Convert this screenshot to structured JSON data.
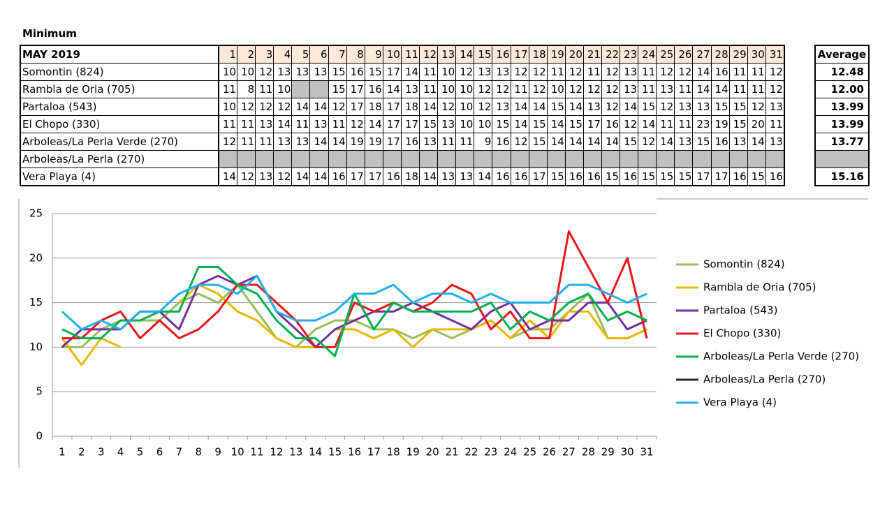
{
  "title": "Minimum",
  "table": {
    "header": "MAY 2019",
    "days": [
      1,
      2,
      3,
      4,
      5,
      6,
      7,
      8,
      9,
      10,
      11,
      12,
      13,
      14,
      15,
      16,
      17,
      18,
      19,
      20,
      21,
      22,
      23,
      24,
      25,
      26,
      27,
      28,
      29,
      30,
      31
    ],
    "average_header": "Average",
    "rows": [
      {
        "name": "Somontin (824)",
        "values": [
          10,
          10,
          12,
          13,
          13,
          13,
          15,
          16,
          15,
          17,
          14,
          11,
          10,
          12,
          13,
          13,
          12,
          12,
          11,
          12,
          11,
          12,
          13,
          11,
          12,
          12,
          14,
          16,
          11,
          11,
          12
        ],
        "average": "12.48"
      },
      {
        "name": "Rambla de Oria (705)",
        "values": [
          11,
          8,
          11,
          10,
          null,
          null,
          15,
          17,
          16,
          14,
          13,
          11,
          10,
          10,
          12,
          12,
          11,
          12,
          10,
          12,
          12,
          12,
          13,
          11,
          13,
          11,
          14,
          14,
          11,
          11,
          12
        ],
        "average": "12.00"
      },
      {
        "name": "Partaloa (543)",
        "values": [
          10,
          12,
          12,
          12,
          14,
          14,
          12,
          17,
          18,
          17,
          18,
          14,
          12,
          10,
          12,
          13,
          14,
          14,
          15,
          14,
          13,
          12,
          14,
          15,
          12,
          13,
          13,
          15,
          15,
          12,
          13
        ],
        "average": "13.99"
      },
      {
        "name": "El Chopo (330)",
        "values": [
          11,
          11,
          13,
          14,
          11,
          13,
          11,
          12,
          14,
          17,
          17,
          15,
          13,
          10,
          10,
          15,
          14,
          15,
          14,
          15,
          17,
          16,
          12,
          14,
          11,
          11,
          23,
          19,
          15,
          20,
          11
        ],
        "average": "13.99"
      },
      {
        "name": "Arboleas/La Perla Verde (270)",
        "values": [
          12,
          11,
          11,
          13,
          13,
          14,
          14,
          19,
          19,
          17,
          16,
          13,
          11,
          11,
          9,
          16,
          12,
          15,
          14,
          14,
          14,
          14,
          15,
          12,
          14,
          13,
          15,
          16,
          13,
          14,
          13
        ],
        "average": "13.77"
      },
      {
        "name": "Arboleas/La Perla (270)",
        "values": [
          null,
          null,
          null,
          null,
          null,
          null,
          null,
          null,
          null,
          null,
          null,
          null,
          null,
          null,
          null,
          null,
          null,
          null,
          null,
          null,
          null,
          null,
          null,
          null,
          null,
          null,
          null,
          null,
          null,
          null,
          null
        ],
        "average": null
      },
      {
        "name": "Vera Playa (4)",
        "values": [
          14,
          12,
          13,
          12,
          14,
          14,
          16,
          17,
          17,
          16,
          18,
          14,
          13,
          13,
          14,
          16,
          16,
          17,
          15,
          16,
          16,
          15,
          16,
          15,
          15,
          15,
          17,
          17,
          16,
          15,
          16
        ],
        "average": "15.16"
      }
    ]
  },
  "chart_data": {
    "type": "line",
    "categories": [
      1,
      2,
      3,
      4,
      5,
      6,
      7,
      8,
      9,
      10,
      11,
      12,
      13,
      14,
      15,
      16,
      17,
      18,
      19,
      20,
      21,
      22,
      23,
      24,
      25,
      26,
      27,
      28,
      29,
      30,
      31
    ],
    "ylim": [
      0,
      25
    ],
    "yticks": [
      0,
      5,
      10,
      15,
      20,
      25
    ],
    "grid": true,
    "legend": "right",
    "series": [
      {
        "name": "Somontin (824)",
        "color": "#9bbb59",
        "values": [
          10,
          10,
          12,
          13,
          13,
          13,
          15,
          16,
          15,
          17,
          14,
          11,
          10,
          12,
          13,
          13,
          12,
          12,
          11,
          12,
          11,
          12,
          13,
          11,
          12,
          12,
          14,
          16,
          11,
          11,
          12
        ]
      },
      {
        "name": "Rambla de Oria (705)",
        "color": "#e6b800",
        "values": [
          11,
          8,
          11,
          10,
          null,
          null,
          15,
          17,
          16,
          14,
          13,
          11,
          10,
          10,
          12,
          12,
          11,
          12,
          10,
          12,
          12,
          12,
          13,
          11,
          13,
          11,
          14,
          14,
          11,
          11,
          12
        ]
      },
      {
        "name": "Partaloa (543)",
        "color": "#7030a0",
        "values": [
          10,
          12,
          12,
          12,
          14,
          14,
          12,
          17,
          18,
          17,
          18,
          14,
          12,
          10,
          12,
          13,
          14,
          14,
          15,
          14,
          13,
          12,
          14,
          15,
          12,
          13,
          13,
          15,
          15,
          12,
          13
        ]
      },
      {
        "name": "El Chopo (330)",
        "color": "#e8161b",
        "values": [
          11,
          11,
          13,
          14,
          11,
          13,
          11,
          12,
          14,
          17,
          17,
          15,
          13,
          10,
          10,
          15,
          14,
          15,
          14,
          15,
          17,
          16,
          12,
          14,
          11,
          11,
          23,
          19,
          15,
          20,
          11
        ]
      },
      {
        "name": "Arboleas/La Perla Verde (270)",
        "color": "#00b050",
        "values": [
          12,
          11,
          11,
          13,
          13,
          14,
          14,
          19,
          19,
          17,
          16,
          13,
          11,
          11,
          9,
          16,
          12,
          15,
          14,
          14,
          14,
          14,
          15,
          12,
          14,
          13,
          15,
          16,
          13,
          14,
          13
        ]
      },
      {
        "name": "Arboleas/La Perla (270)",
        "color": "#262626",
        "values": [
          null,
          null,
          null,
          null,
          null,
          null,
          null,
          null,
          null,
          null,
          null,
          null,
          null,
          null,
          null,
          null,
          null,
          null,
          null,
          null,
          null,
          null,
          null,
          null,
          null,
          null,
          null,
          null,
          null,
          null,
          null
        ]
      },
      {
        "name": "Vera Playa (4)",
        "color": "#1fb0e6",
        "values": [
          14,
          12,
          13,
          12,
          14,
          14,
          16,
          17,
          17,
          16,
          18,
          14,
          13,
          13,
          14,
          16,
          16,
          17,
          15,
          16,
          16,
          15,
          16,
          15,
          15,
          15,
          17,
          17,
          16,
          15,
          16
        ]
      }
    ]
  }
}
